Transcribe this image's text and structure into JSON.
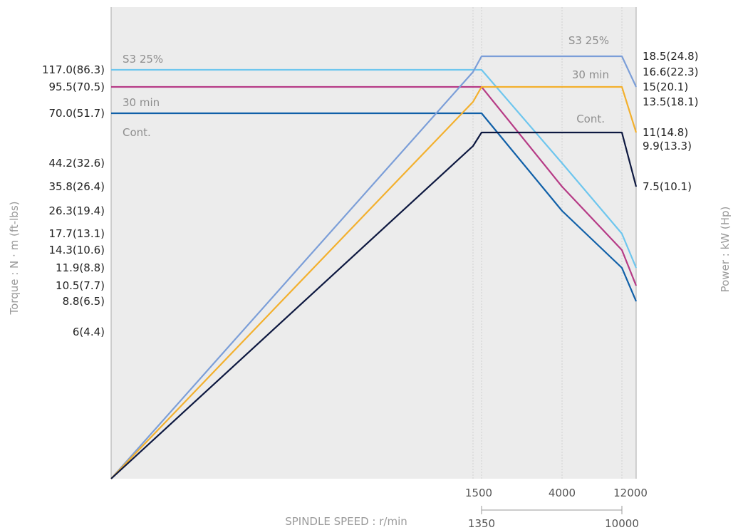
{
  "chart_data": {
    "type": "line",
    "xlabel": "SPINDLE SPEED : r/min",
    "ylabel_left": "Torque : N · m (ft-lbs)",
    "ylabel_right": "Power : kW (Hp)",
    "x_ticks": [
      "1500",
      "4000",
      "12000"
    ],
    "x_ticks_secondary": [
      "1350",
      "10000"
    ],
    "torque_ticks": [
      {
        "label": "117.0(86.3)",
        "value": 117.0
      },
      {
        "label": "95.5(70.5)",
        "value": 95.5
      },
      {
        "label": "70.0(51.7)",
        "value": 70.0
      },
      {
        "label": "44.2(32.6)",
        "value": 44.2
      },
      {
        "label": "35.8(26.4)",
        "value": 35.8
      },
      {
        "label": "26.3(19.4)",
        "value": 26.3
      },
      {
        "label": "17.7(13.1)",
        "value": 17.7
      },
      {
        "label": "14.3(10.6)",
        "value": 14.3
      },
      {
        "label": "11.9(8.8)",
        "value": 11.9
      },
      {
        "label": "10.5(7.7)",
        "value": 10.5
      },
      {
        "label": "8.8(6.5)",
        "value": 8.8
      },
      {
        "label": "6(4.4)",
        "value": 6
      }
    ],
    "power_ticks": [
      {
        "label": "18.5(24.8)",
        "value": 18.5
      },
      {
        "label": "16.6(22.3)",
        "value": 16.6
      },
      {
        "label": "15(20.1)",
        "value": 15
      },
      {
        "label": "13.5(18.1)",
        "value": 13.5
      },
      {
        "label": "11(14.8)",
        "value": 11
      },
      {
        "label": "9.9(13.3)",
        "value": 9.9
      },
      {
        "label": "7.5(10.1)",
        "value": 7.5
      }
    ],
    "series": [
      {
        "label": "S3 25%",
        "axis": "torque",
        "color": "#6ec6ee",
        "points": [
          [
            0,
            117.0
          ],
          [
            1350,
            117.0
          ],
          [
            4000,
            44.2
          ],
          [
            10000,
            17.7
          ],
          [
            12000,
            11.9
          ]
        ]
      },
      {
        "axis": "torque",
        "color": "#b63b86",
        "points": [
          [
            0,
            95.5
          ],
          [
            1350,
            95.5
          ],
          [
            4000,
            35.8
          ],
          [
            10000,
            14.3
          ],
          [
            12000,
            10.5
          ]
        ]
      },
      {
        "label": "30 min",
        "axis": "torque",
        "color": "#1060a8",
        "points": [
          [
            0,
            70.0
          ],
          [
            1350,
            70.0
          ],
          [
            4000,
            26.3
          ],
          [
            10000,
            11.9
          ],
          [
            12000,
            8.8
          ]
        ]
      },
      {
        "label": "S3 25%",
        "axis": "power",
        "color": "#7b9ed8",
        "points": [
          [
            0,
            0
          ],
          [
            1200,
            16.6
          ],
          [
            1500,
            18.5
          ],
          [
            10000,
            18.5
          ],
          [
            12000,
            15
          ]
        ]
      },
      {
        "label": "30 min",
        "axis": "power",
        "color": "#f3b02d",
        "points": [
          [
            0,
            0
          ],
          [
            1200,
            13.5
          ],
          [
            1500,
            15
          ],
          [
            10000,
            15
          ],
          [
            12000,
            11
          ]
        ]
      },
      {
        "label": "Cont.",
        "axis": "power",
        "color": "#0d1840",
        "points": [
          [
            0,
            0
          ],
          [
            1200,
            9.9
          ],
          [
            1500,
            11
          ],
          [
            10000,
            11
          ],
          [
            12000,
            7.5
          ]
        ]
      }
    ],
    "torque_label_extra": "Cont."
  }
}
